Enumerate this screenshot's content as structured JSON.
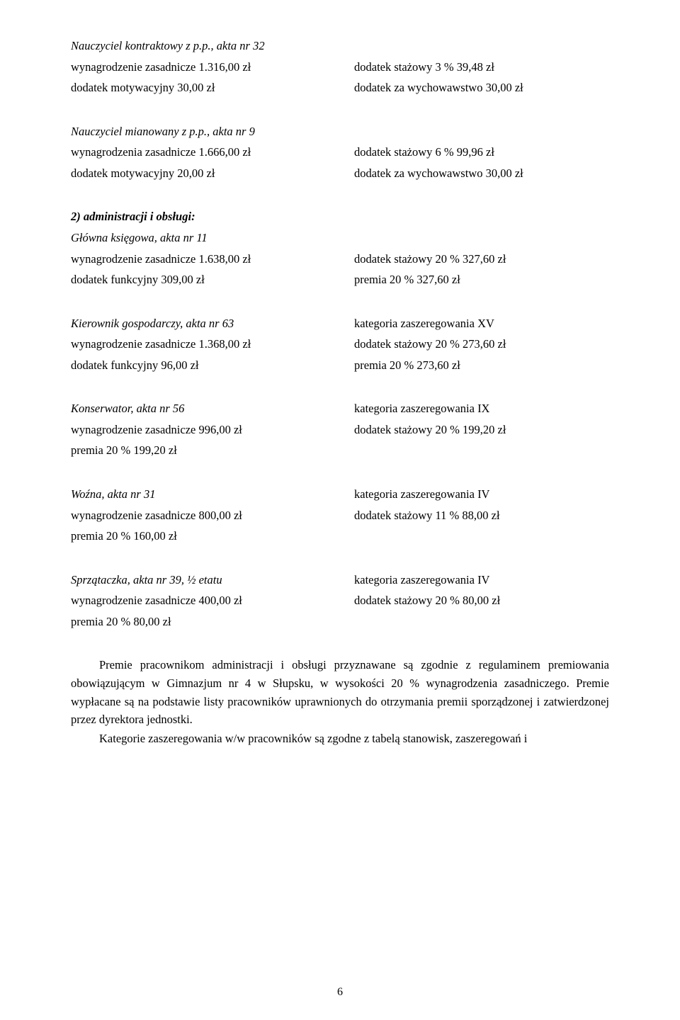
{
  "sections": [
    {
      "header_class": "italic",
      "header": "Nauczyciel kontraktowy z p.p., akta nr 32",
      "rows": [
        {
          "left": "wynagrodzenie zasadnicze 1.316,00 zł",
          "right": "dodatek stażowy 3 % 39,48 zł"
        },
        {
          "left": "dodatek motywacyjny 30,00 zł",
          "right": "dodatek za wychowawstwo 30,00 zł"
        }
      ]
    },
    {
      "header_class": "italic",
      "header": "Nauczyciel mianowany z p.p., akta nr 9",
      "rows": [
        {
          "left": "wynagrodzenia zasadnicze 1.666,00 zł",
          "right": "dodatek stażowy 6 % 99,96 zł"
        },
        {
          "left": "dodatek motywacyjny 20,00 zł",
          "right": "dodatek za wychowawstwo 30,00 zł"
        }
      ]
    },
    {
      "header_class": "bold-italic",
      "header": "2) administracji i obsługi:",
      "subheader_class": "italic",
      "subheader": "Główna księgowa, akta nr 11",
      "rows": [
        {
          "left": "wynagrodzenie zasadnicze 1.638,00 zł",
          "right": "dodatek stażowy 20 % 327,60 zł"
        },
        {
          "left": "dodatek funkcyjny 309,00 zł",
          "right": "premia 20 % 327,60 zł"
        }
      ]
    },
    {
      "header_class": "italic",
      "header_right": "kategoria zaszeregowania XV",
      "header": "Kierownik gospodarczy, akta nr 63",
      "rows": [
        {
          "left": "wynagrodzenie zasadnicze 1.368,00 zł",
          "right": "dodatek stażowy 20 % 273,60 zł"
        },
        {
          "left": "dodatek funkcyjny 96,00 zł",
          "right": "premia 20 % 273,60 zł"
        }
      ]
    },
    {
      "header_class": "italic",
      "header_right": "kategoria zaszeregowania IX",
      "header": "Konserwator, akta nr 56",
      "rows": [
        {
          "left": "wynagrodzenie zasadnicze 996,00 zł",
          "right": "dodatek stażowy 20 % 199,20 zł"
        },
        {
          "left": "premia 20 % 199,20 zł",
          "right": ""
        }
      ]
    },
    {
      "header_class": "italic",
      "header_right": "kategoria zaszeregowania IV",
      "header": "Woźna, akta nr 31",
      "rows": [
        {
          "left": "wynagrodzenie zasadnicze 800,00 zł",
          "right": "dodatek stażowy 11 % 88,00 zł"
        },
        {
          "left": "premia 20 % 160,00 zł",
          "right": ""
        }
      ]
    },
    {
      "header_class": "italic",
      "header_right": "kategoria zaszeregowania IV",
      "header": "Sprzątaczka, akta nr 39, ½ etatu",
      "rows": [
        {
          "left": "wynagrodzenie zasadnicze 400,00 zł",
          "right": "dodatek stażowy 20 % 80,00 zł"
        },
        {
          "left": "premia 20 % 80,00 zł",
          "right": ""
        }
      ]
    }
  ],
  "body": {
    "p1": "Premie pracownikom administracji i obsługi przyznawane są zgodnie z regulaminem premiowania obowiązującym w Gimnazjum nr 4 w Słupsku, w wysokości 20 % wynagrodzenia zasadniczego. Premie wypłacane są na podstawie listy pracowników uprawnionych do otrzymania premii sporządzonej i zatwierdzonej przez dyrektora jednostki.",
    "p2": "Kategorie zaszeregowania w/w pracowników są zgodne z tabelą stanowisk, zaszeregowań i"
  },
  "page_number": "6"
}
